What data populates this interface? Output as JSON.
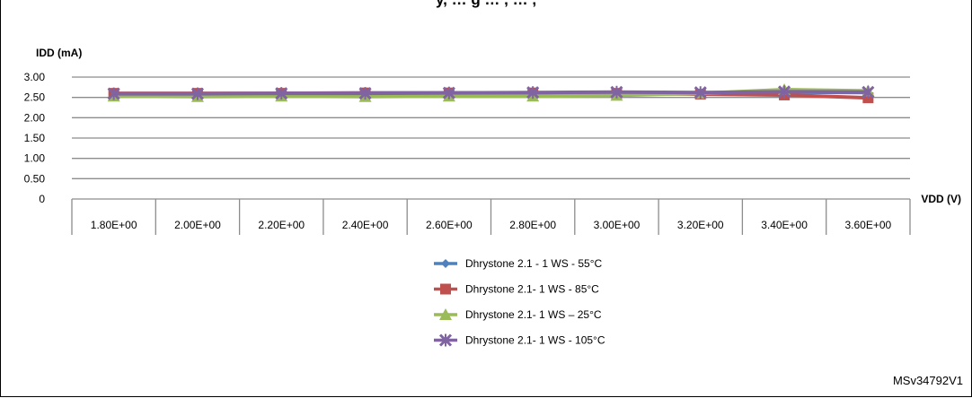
{
  "figure": {
    "title": "y, … g … , … ,",
    "id_label": "MSv34792V1"
  },
  "chart_data": {
    "type": "line",
    "title": "",
    "xlabel": "VDD (V)",
    "ylabel": "IDD (mA)",
    "ylim": [
      0,
      3
    ],
    "yticks": [
      {
        "value": 3.0,
        "label": "3.00"
      },
      {
        "value": 2.5,
        "label": "2.50"
      },
      {
        "value": 2.0,
        "label": "2.00"
      },
      {
        "value": 1.5,
        "label": "1.50"
      },
      {
        "value": 1.0,
        "label": "1.00"
      },
      {
        "value": 0.5,
        "label": "0.50"
      },
      {
        "value": 0,
        "label": "0"
      }
    ],
    "categories": [
      "1.80E+00",
      "2.00E+00",
      "2.20E+00",
      "2.40E+00",
      "2.60E+00",
      "2.80E+00",
      "3.00E+00",
      "3.20E+00",
      "3.40E+00",
      "3.60E+00"
    ],
    "grid": true,
    "legend_position": "bottom",
    "series": [
      {
        "name": "Dhrystone 2.1 - 1 WS - 55°C",
        "color": "#4F81BD",
        "marker": "diamond",
        "values": [
          2.56,
          2.56,
          2.56,
          2.56,
          2.56,
          2.57,
          2.58,
          2.6,
          2.63,
          2.62
        ]
      },
      {
        "name": "Dhrystone 2.1- 1 WS - 85°C",
        "color": "#C0504D",
        "marker": "square",
        "values": [
          2.6,
          2.6,
          2.6,
          2.61,
          2.61,
          2.61,
          2.6,
          2.58,
          2.56,
          2.49
        ]
      },
      {
        "name": "Dhrystone 2.1- 1 WS – 25°C",
        "color": "#9BBB59",
        "marker": "triangle",
        "values": [
          2.53,
          2.52,
          2.53,
          2.52,
          2.53,
          2.53,
          2.55,
          2.6,
          2.69,
          2.66
        ]
      },
      {
        "name": "Dhrystone 2.1- 1 WS - 105°C",
        "color": "#8064A2",
        "marker": "star",
        "values": [
          2.59,
          2.59,
          2.6,
          2.6,
          2.61,
          2.62,
          2.63,
          2.62,
          2.64,
          2.63
        ]
      }
    ]
  }
}
